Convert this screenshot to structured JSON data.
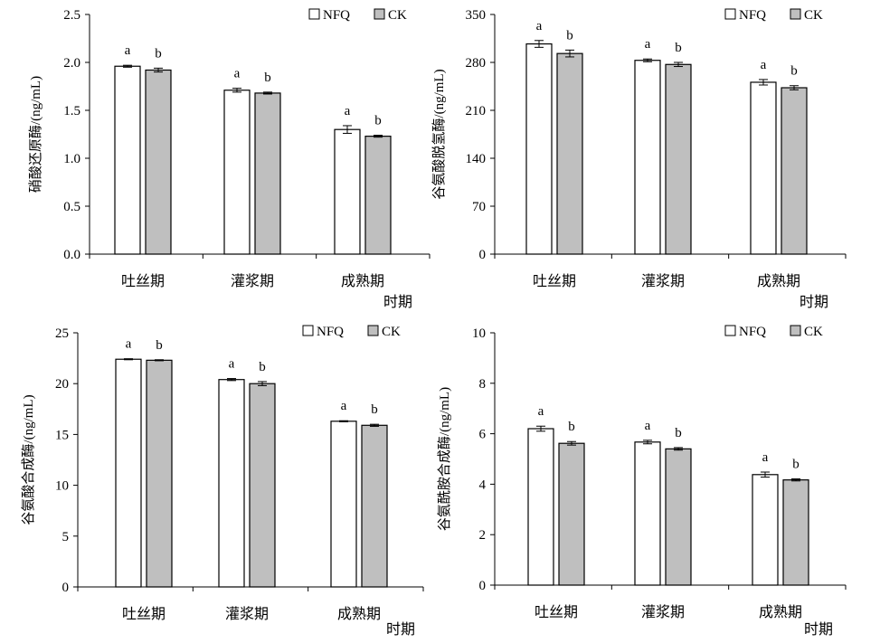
{
  "chart_data": [
    {
      "type": "bar",
      "ylabel": "硝酸还原酶/(ng/mL)",
      "xlabel": "时期",
      "categories": [
        "吐丝期",
        "灌浆期",
        "成熟期"
      ],
      "ylim": [
        0,
        2.5
      ],
      "yticks": [
        "0.0",
        "0.5",
        "1.0",
        "1.5",
        "2.0",
        "2.5"
      ],
      "legend_position": "top-right",
      "series": [
        {
          "name": "NFQ",
          "color": "#ffffff",
          "values": [
            1.96,
            1.71,
            1.3
          ],
          "errors": [
            0.01,
            0.02,
            0.04
          ],
          "letters": [
            "a",
            "a",
            "a"
          ]
        },
        {
          "name": "CK",
          "color": "#bfbfbf",
          "values": [
            1.92,
            1.68,
            1.23
          ],
          "errors": [
            0.02,
            0.01,
            0.01
          ],
          "letters": [
            "b",
            "b",
            "b"
          ]
        }
      ]
    },
    {
      "type": "bar",
      "ylabel": "谷氨酸脱氢酶/(ng/mL)",
      "xlabel": "时期",
      "categories": [
        "吐丝期",
        "灌浆期",
        "成熟期"
      ],
      "ylim": [
        0,
        350
      ],
      "yticks": [
        "0",
        "70",
        "140",
        "210",
        "280",
        "350"
      ],
      "legend_position": "top-right",
      "series": [
        {
          "name": "NFQ",
          "color": "#ffffff",
          "values": [
            307,
            283,
            251
          ],
          "errors": [
            5,
            2,
            4
          ],
          "letters": [
            "a",
            "a",
            "a"
          ]
        },
        {
          "name": "CK",
          "color": "#bfbfbf",
          "values": [
            293,
            277,
            243
          ],
          "errors": [
            5,
            3,
            3
          ],
          "letters": [
            "b",
            "b",
            "b"
          ]
        }
      ]
    },
    {
      "type": "bar",
      "ylabel": "谷氨酸合成酶/(ng/mL)",
      "xlabel": "时期",
      "categories": [
        "吐丝期",
        "灌浆期",
        "成熟期"
      ],
      "ylim": [
        0,
        25
      ],
      "yticks": [
        "0",
        "5",
        "10",
        "15",
        "20",
        "25"
      ],
      "legend_position": "top-right",
      "series": [
        {
          "name": "NFQ",
          "color": "#ffffff",
          "values": [
            22.4,
            20.4,
            16.3
          ],
          "errors": [
            0.05,
            0.1,
            0.05
          ],
          "letters": [
            "a",
            "a",
            "a"
          ]
        },
        {
          "name": "CK",
          "color": "#bfbfbf",
          "values": [
            22.3,
            20.0,
            15.9
          ],
          "errors": [
            0.05,
            0.2,
            0.1
          ],
          "letters": [
            "b",
            "b",
            "b"
          ]
        }
      ]
    },
    {
      "type": "bar",
      "ylabel": "谷氨酰胺合成酶/(ng/mL)",
      "xlabel": "时期",
      "categories": [
        "吐丝期",
        "灌浆期",
        "成熟期"
      ],
      "ylim": [
        0,
        10
      ],
      "yticks": [
        "0",
        "2",
        "4",
        "6",
        "8",
        "10"
      ],
      "legend_position": "top-right",
      "series": [
        {
          "name": "NFQ",
          "color": "#ffffff",
          "values": [
            6.2,
            5.67,
            4.38
          ],
          "errors": [
            0.1,
            0.07,
            0.1
          ],
          "letters": [
            "a",
            "a",
            "a"
          ]
        },
        {
          "name": "CK",
          "color": "#bfbfbf",
          "values": [
            5.62,
            5.4,
            4.17
          ],
          "errors": [
            0.07,
            0.05,
            0.04
          ],
          "letters": [
            "b",
            "b",
            "b"
          ]
        }
      ]
    }
  ]
}
